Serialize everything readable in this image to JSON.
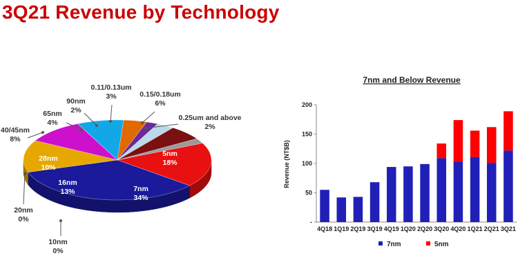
{
  "slide": {
    "title": "3Q21 Revenue by Technology"
  },
  "colors": {
    "title": "#cc0000",
    "series_7nm": "#2020b8",
    "series_5nm": "#ff0000"
  },
  "chart_data": [
    {
      "type": "pie",
      "title": "",
      "slices": [
        {
          "name": "5nm",
          "label": "5nm",
          "pct_label": "18%",
          "value": 18,
          "color": "#e81010"
        },
        {
          "name": "7nm",
          "label": "7nm",
          "pct_label": "34%",
          "value": 34,
          "color": "#1a1a9a"
        },
        {
          "name": "10nm",
          "label": "10nm",
          "pct_label": "0%",
          "value": 0,
          "color": "#f0f0f0"
        },
        {
          "name": "16nm",
          "label": "16nm",
          "pct_label": "13%",
          "value": 13,
          "color": "#e6a800"
        },
        {
          "name": "20nm",
          "label": "20nm",
          "pct_label": "0%",
          "value": 0,
          "color": "#f0f0f0"
        },
        {
          "name": "28nm",
          "label": "28nm",
          "pct_label": "10%",
          "value": 10,
          "color": "#cc10cc"
        },
        {
          "name": "40/45nm",
          "label": "40/45nm",
          "pct_label": "8%",
          "value": 8,
          "color": "#12a8e8"
        },
        {
          "name": "65nm",
          "label": "65nm",
          "pct_label": "4%",
          "value": 4,
          "color": "#e06a00"
        },
        {
          "name": "90nm",
          "label": "90nm",
          "pct_label": "2%",
          "value": 2,
          "color": "#6a2a9a"
        },
        {
          "name": "0.11/0.13um",
          "label": "0.11/0.13um",
          "pct_label": "3%",
          "value": 3,
          "color": "#bcd8ea"
        },
        {
          "name": "0.15/0.18um",
          "label": "0.15/0.18um",
          "pct_label": "6%",
          "value": 6,
          "color": "#7a1010"
        },
        {
          "name": "0.25um and above",
          "label": "0.25um and above",
          "pct_label": "2%",
          "value": 2,
          "color": "#9a9a9a"
        }
      ]
    },
    {
      "type": "bar",
      "stacked": true,
      "title": "7nm and Below Revenue",
      "ylabel": "Revenue (NT$B)",
      "xlabel": "",
      "ylim": [
        0,
        200
      ],
      "yticks": [
        0,
        50,
        100,
        150,
        200
      ],
      "ytick_labels": [
        "-",
        "50",
        "100",
        "150",
        "200"
      ],
      "categories": [
        "4Q18",
        "1Q19",
        "2Q19",
        "3Q19",
        "4Q19",
        "1Q20",
        "2Q20",
        "3Q20",
        "4Q20",
        "1Q21",
        "2Q21",
        "3Q21"
      ],
      "series": [
        {
          "name": "7nm",
          "color": "#2020b8",
          "values": [
            55,
            42,
            43,
            68,
            94,
            95,
            99,
            109,
            103,
            111,
            101,
            122
          ]
        },
        {
          "name": "5nm",
          "color": "#ff0000",
          "values": [
            0,
            0,
            0,
            0,
            0,
            0,
            0,
            25,
            71,
            45,
            61,
            67
          ]
        }
      ],
      "legend": "bottom"
    }
  ]
}
